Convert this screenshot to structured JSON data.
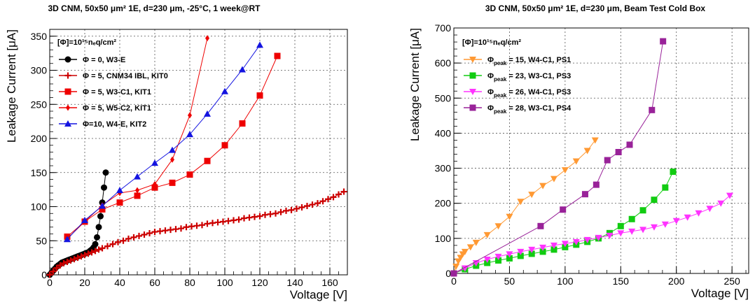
{
  "chart_data": [
    {
      "type": "line",
      "title": "3D CNM, 50x50 μm² 1E, d=230 μm, -25°C, 1 week@RT",
      "xlabel": "Voltage [V]",
      "ylabel": "Leakage Current [μA]",
      "xlim": [
        0,
        170
      ],
      "ylim": [
        0,
        360
      ],
      "xticks": [
        0,
        20,
        40,
        60,
        80,
        100,
        120,
        140,
        160
      ],
      "yticks": [
        0,
        50,
        100,
        150,
        200,
        250,
        300,
        350
      ],
      "grid": true,
      "legend_position": "top-left",
      "legend_header": "[Φ]=10¹⁵nₑq/cm²",
      "series": [
        {
          "name": "Φ = 0, W3-E",
          "color": "#000000",
          "marker": "circle",
          "x": [
            0,
            1,
            2,
            3,
            4,
            5,
            6,
            7,
            8,
            9,
            10,
            11,
            12,
            13,
            14,
            15,
            16,
            17,
            18,
            19,
            20,
            21,
            22,
            23,
            24,
            25,
            26,
            27,
            28,
            29,
            30,
            31,
            32
          ],
          "y": [
            0,
            3,
            6,
            9,
            12,
            14,
            16,
            18,
            19,
            20,
            21,
            22,
            23,
            24,
            25,
            26,
            27,
            28,
            29,
            30,
            31,
            32,
            33,
            35,
            37,
            40,
            45,
            55,
            70,
            86,
            106,
            128,
            150
          ]
        },
        {
          "name": "Φ = 5, CNM34 IBL, KIT0",
          "color": "#cc0000",
          "marker": "plus",
          "x": [
            0,
            2,
            4,
            6,
            8,
            10,
            12,
            14,
            16,
            18,
            20,
            22,
            24,
            26,
            28,
            30,
            33,
            36,
            39,
            42,
            45,
            48,
            51,
            54,
            57,
            60,
            63,
            66,
            69,
            72,
            75,
            78,
            81,
            84,
            87,
            90,
            93,
            96,
            99,
            102,
            105,
            108,
            111,
            114,
            117,
            120,
            123,
            126,
            129,
            132,
            135,
            138,
            141,
            144,
            147,
            150,
            153,
            156,
            159,
            162,
            165,
            168
          ],
          "y": [
            0,
            5,
            10,
            14,
            17,
            19,
            21,
            23,
            25,
            27,
            29,
            31,
            33,
            35,
            37,
            39,
            42,
            45,
            48,
            50,
            53,
            55,
            57,
            59,
            61,
            63,
            64,
            65,
            66,
            67,
            68,
            70,
            71,
            72,
            73,
            75,
            76,
            77,
            78,
            79,
            80,
            81,
            83,
            84,
            85,
            86,
            88,
            89,
            90,
            92,
            94,
            95,
            97,
            99,
            101,
            103,
            105,
            108,
            111,
            114,
            118,
            122
          ]
        },
        {
          "name": "Φ = 5, W3-C1, KIT1",
          "color": "#ee0000",
          "marker": "square",
          "x": [
            10,
            20,
            30,
            40,
            50,
            60,
            70,
            80,
            90,
            100,
            110,
            120,
            130
          ],
          "y": [
            56,
            78,
            96,
            106,
            116,
            128,
            135,
            147,
            167,
            190,
            222,
            263,
            321
          ]
        },
        {
          "name": "Φ = 5, W5-C2, KIT1",
          "color": "#ee0000",
          "marker": "diamond",
          "x": [
            10,
            20,
            30,
            40,
            50,
            60,
            70,
            80,
            90
          ],
          "y": [
            53,
            78,
            102,
            120,
            124,
            133,
            169,
            234,
            347
          ]
        },
        {
          "name": "Φ=10, W4-E,   KIT2",
          "color": "#1414e0",
          "marker": "triangle-up",
          "x": [
            10,
            20,
            30,
            40,
            50,
            60,
            70,
            80,
            90,
            100,
            110,
            120
          ],
          "y": [
            52,
            80,
            101,
            124,
            144,
            164,
            183,
            206,
            236,
            269,
            301,
            337
          ]
        }
      ]
    },
    {
      "type": "line",
      "title": "3D CNM, 50x50 μm² 1E, d=230 μm, Beam Test Cold Box",
      "xlabel": "Voltage [V]",
      "ylabel": "Leakage Current [μA]",
      "xlim": [
        0,
        265
      ],
      "ylim": [
        0,
        700
      ],
      "xticks": [
        0,
        50,
        100,
        150,
        200,
        250
      ],
      "yticks": [
        0,
        100,
        200,
        300,
        400,
        500,
        600,
        700
      ],
      "grid": true,
      "legend_position": "top-left",
      "legend_header": "[Φ]=10¹⁵nₑq/cm²",
      "series": [
        {
          "name": "Φpeak = 15, W4-C1, PS1",
          "legend_main": "Φ",
          "legend_sub": "peak",
          "legend_rest": " = 15, W4-C1, PS1",
          "color": "#ff9933",
          "marker": "triangle-down",
          "x": [
            0,
            2,
            4,
            6,
            8,
            10,
            15,
            20,
            30,
            40,
            50,
            60,
            70,
            80,
            90,
            100,
            110,
            120,
            127
          ],
          "y": [
            0,
            20,
            35,
            45,
            55,
            62,
            75,
            88,
            110,
            135,
            162,
            205,
            225,
            250,
            270,
            295,
            320,
            350,
            380
          ]
        },
        {
          "name": "Φpeak = 23, W3-C1, PS3",
          "legend_main": "Φ",
          "legend_sub": "peak",
          "legend_rest": " = 23, W3-C1, PS3",
          "color": "#11cc11",
          "marker": "square",
          "x": [
            0,
            10,
            20,
            30,
            40,
            50,
            60,
            70,
            80,
            90,
            100,
            110,
            120,
            130,
            140,
            150,
            160,
            170,
            180,
            190,
            197
          ],
          "y": [
            0,
            12,
            22,
            30,
            37,
            43,
            50,
            56,
            62,
            68,
            75,
            82,
            90,
            100,
            115,
            135,
            155,
            180,
            210,
            245,
            290
          ]
        },
        {
          "name": "Φpeak = 26, W4-C1, PS3",
          "legend_main": "Φ",
          "legend_sub": "peak",
          "legend_rest": " = 26, W4-C1, PS3",
          "color": "#ff33ff",
          "marker": "triangle-down",
          "x": [
            0,
            10,
            20,
            30,
            40,
            50,
            60,
            70,
            80,
            90,
            100,
            110,
            120,
            130,
            140,
            150,
            160,
            170,
            180,
            190,
            200,
            210,
            220,
            230,
            240,
            248
          ],
          "y": [
            0,
            15,
            30,
            40,
            48,
            55,
            62,
            68,
            74,
            80,
            85,
            90,
            96,
            102,
            108,
            115,
            120,
            125,
            132,
            140,
            150,
            160,
            172,
            185,
            200,
            222
          ]
        },
        {
          "name": "Φpeak = 28, W3-C1, PS4",
          "legend_main": "Φ",
          "legend_sub": "peak",
          "legend_rest": " = 28, W3-C1, PS4",
          "color": "#992299",
          "marker": "square",
          "x": [
            0,
            78,
            98,
            118,
            128,
            138,
            148,
            158,
            178,
            188
          ],
          "y": [
            0,
            135,
            182,
            226,
            253,
            323,
            346,
            367,
            466,
            662
          ]
        }
      ]
    }
  ]
}
